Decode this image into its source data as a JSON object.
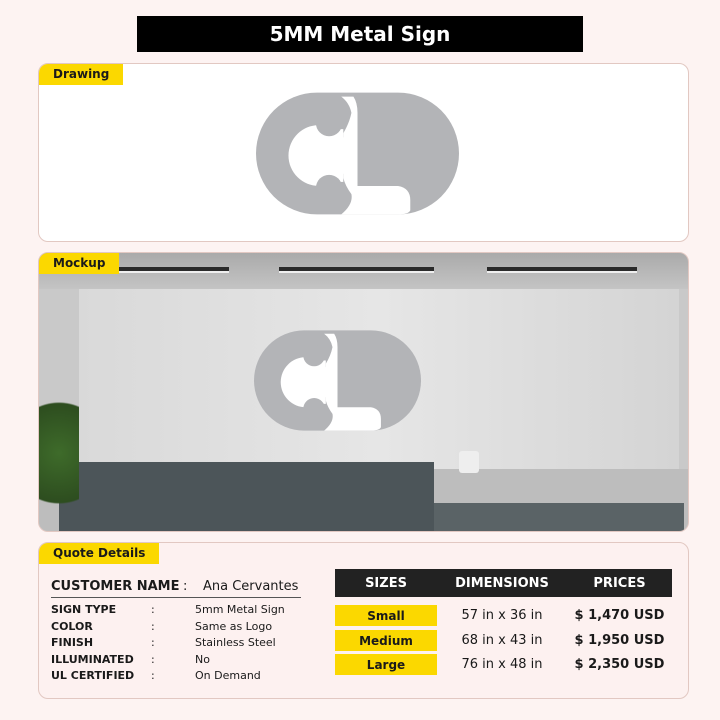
{
  "title": "5MM Metal Sign",
  "drawing": {
    "label": "Drawing"
  },
  "mockup": {
    "label": "Mockup"
  },
  "quote": {
    "label": "Quote Details",
    "customer_label": "CUSTOMER NAME",
    "customer_value": "Ana Cervantes",
    "fields": [
      {
        "label": "SIGN TYPE",
        "value": "5mm Metal Sign"
      },
      {
        "label": "COLOR",
        "value": "Same as Logo"
      },
      {
        "label": "FINISH",
        "value": "Stainless Steel"
      },
      {
        "label": "ILLUMINATED",
        "value": "No"
      },
      {
        "label": "UL CERTIFIED",
        "value": "On Demand"
      }
    ],
    "separator": ":",
    "table": {
      "headers": [
        "SIZES",
        "DIMENSIONS",
        "PRICES"
      ],
      "rows": [
        {
          "size": "Small",
          "dimensions": "57 in x 36 in",
          "price": "$ 1,470 USD"
        },
        {
          "size": "Medium",
          "dimensions": "68 in x 43 in",
          "price": "$ 1,950 USD"
        },
        {
          "size": "Large",
          "dimensions": "76 in x 48 in",
          "price": "$ 2,350 USD"
        }
      ]
    }
  },
  "colors": {
    "accent": "#fbd800",
    "logo": "#b3b4b7",
    "title_bg": "#000000"
  }
}
